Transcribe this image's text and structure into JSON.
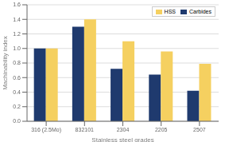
{
  "chart_data": {
    "type": "bar",
    "xlabel": "Stainless steel grades",
    "ylabel": "Machinability index",
    "categories": [
      "316 (2.5Mo)",
      "832101",
      "2304",
      "2205",
      "2507"
    ],
    "series": [
      {
        "name": "Carbides",
        "color": "#1F3A6E",
        "values": [
          1.0,
          1.3,
          0.72,
          0.64,
          0.42
        ]
      },
      {
        "name": "HSS",
        "color": "#F5D060",
        "values": [
          1.0,
          1.4,
          1.1,
          0.96,
          0.79
        ]
      }
    ],
    "ylim": [
      0.0,
      1.6
    ],
    "yticks": [
      {
        "value": 0.0,
        "label": "0.0"
      },
      0.2,
      0.4,
      0.6,
      0.8,
      {
        "value": 1.0,
        "label": "1.0"
      },
      1.2,
      1.4,
      0.0,
      {
        "value": 1.6,
        "label": "1.6"
      }
    ],
    "grid": true,
    "legend": "upper right"
  }
}
